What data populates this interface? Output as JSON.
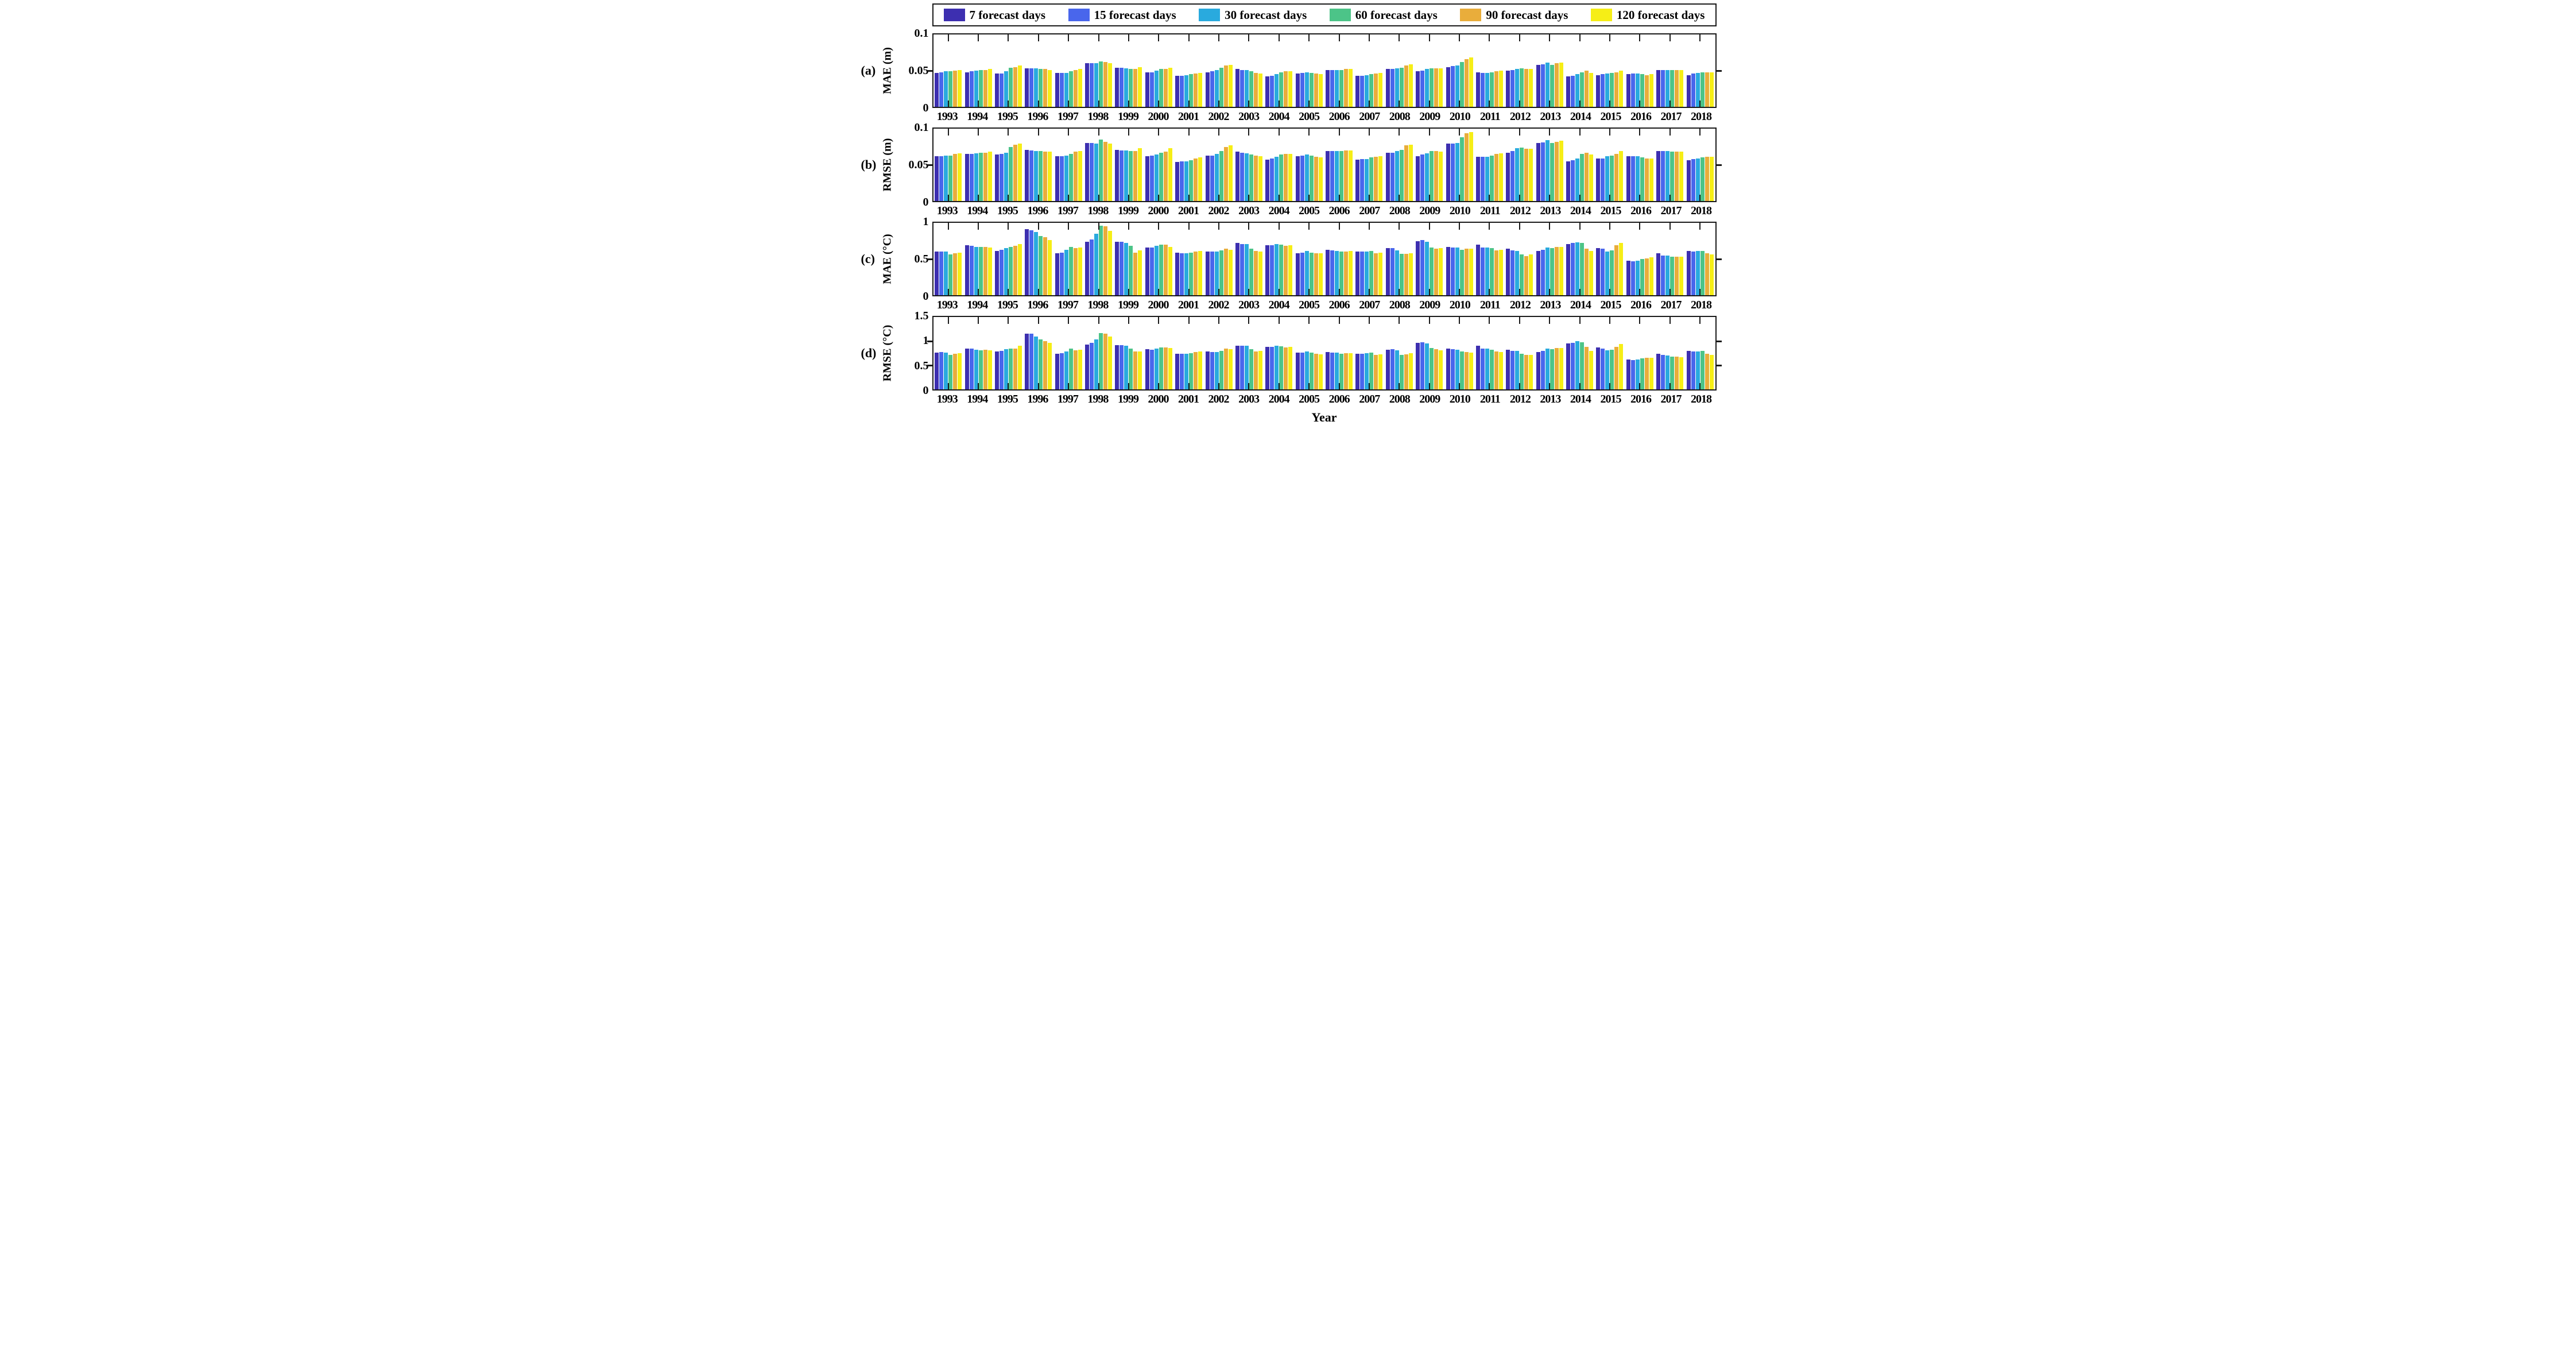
{
  "xlabel": "Year",
  "legend": {
    "items": [
      {
        "label": "7 forecast days",
        "color": "#3d2fb0"
      },
      {
        "label": "15 forecast days",
        "color": "#4966ec"
      },
      {
        "label": "30 forecast days",
        "color": "#29aade"
      },
      {
        "label": "60 forecast days",
        "color": "#4cc488"
      },
      {
        "label": "90 forecast days",
        "color": "#e9ad3b"
      },
      {
        "label": "120 forecast days",
        "color": "#f6ee16"
      }
    ]
  },
  "chart_data": [
    {
      "type": "bar",
      "panel_tag": "(a)",
      "ylabel": "MAE (m)",
      "xlabel": "Year",
      "ylim": [
        0,
        0.1
      ],
      "yticks": [
        {
          "v": 0,
          "label": "0"
        },
        {
          "v": 0.05,
          "label": "0.05"
        },
        {
          "v": 0.1,
          "label": "0.1"
        }
      ],
      "grid": false,
      "legend_position": "top",
      "categories": [
        1993,
        1994,
        1995,
        1996,
        1997,
        1998,
        1999,
        2000,
        2001,
        2002,
        2003,
        2004,
        2005,
        2006,
        2007,
        2008,
        2009,
        2010,
        2011,
        2012,
        2013,
        2014,
        2015,
        2016,
        2017,
        2018
      ],
      "series": [
        {
          "name": "7 forecast days",
          "values": [
            0.047,
            0.048,
            0.046,
            0.053,
            0.047,
            0.06,
            0.054,
            0.048,
            0.043,
            0.048,
            0.052,
            0.042,
            0.046,
            0.051,
            0.043,
            0.052,
            0.049,
            0.055,
            0.048,
            0.05,
            0.058,
            0.042,
            0.044,
            0.045,
            0.051,
            0.044
          ]
        },
        {
          "name": "15 forecast days",
          "values": [
            0.048,
            0.049,
            0.046,
            0.053,
            0.047,
            0.06,
            0.054,
            0.048,
            0.043,
            0.049,
            0.051,
            0.043,
            0.047,
            0.051,
            0.043,
            0.052,
            0.05,
            0.056,
            0.047,
            0.051,
            0.059,
            0.043,
            0.045,
            0.046,
            0.051,
            0.046
          ]
        },
        {
          "name": "30 forecast days",
          "values": [
            0.049,
            0.05,
            0.049,
            0.053,
            0.047,
            0.06,
            0.053,
            0.05,
            0.044,
            0.051,
            0.051,
            0.045,
            0.048,
            0.051,
            0.044,
            0.053,
            0.052,
            0.057,
            0.047,
            0.052,
            0.061,
            0.045,
            0.046,
            0.046,
            0.051,
            0.047
          ]
        },
        {
          "name": "60 forecast days",
          "values": [
            0.049,
            0.051,
            0.054,
            0.052,
            0.049,
            0.063,
            0.052,
            0.052,
            0.045,
            0.054,
            0.049,
            0.048,
            0.047,
            0.051,
            0.045,
            0.054,
            0.053,
            0.062,
            0.048,
            0.053,
            0.058,
            0.048,
            0.047,
            0.045,
            0.051,
            0.048
          ]
        },
        {
          "name": "90 forecast days",
          "values": [
            0.05,
            0.051,
            0.055,
            0.052,
            0.051,
            0.062,
            0.052,
            0.052,
            0.046,
            0.057,
            0.047,
            0.049,
            0.046,
            0.052,
            0.046,
            0.057,
            0.053,
            0.066,
            0.049,
            0.052,
            0.06,
            0.05,
            0.048,
            0.044,
            0.051,
            0.048
          ]
        },
        {
          "name": "120 forecast days",
          "values": [
            0.051,
            0.052,
            0.057,
            0.051,
            0.052,
            0.06,
            0.055,
            0.054,
            0.047,
            0.058,
            0.046,
            0.049,
            0.045,
            0.052,
            0.047,
            0.059,
            0.053,
            0.068,
            0.05,
            0.052,
            0.061,
            0.047,
            0.05,
            0.045,
            0.051,
            0.048
          ]
        }
      ]
    },
    {
      "type": "bar",
      "panel_tag": "(b)",
      "ylabel": "RMSE (m)",
      "xlabel": "Year",
      "ylim": [
        0,
        0.1
      ],
      "yticks": [
        {
          "v": 0,
          "label": "0"
        },
        {
          "v": 0.05,
          "label": "0.05"
        },
        {
          "v": 0.1,
          "label": "0.1"
        }
      ],
      "grid": false,
      "legend_position": "top",
      "categories": [
        1993,
        1994,
        1995,
        1996,
        1997,
        1998,
        1999,
        2000,
        2001,
        2002,
        2003,
        2004,
        2005,
        2006,
        2007,
        2008,
        2009,
        2010,
        2011,
        2012,
        2013,
        2014,
        2015,
        2016,
        2017,
        2018
      ],
      "series": [
        {
          "name": "7 forecast days",
          "values": [
            0.062,
            0.065,
            0.064,
            0.071,
            0.062,
            0.08,
            0.071,
            0.062,
            0.054,
            0.063,
            0.068,
            0.057,
            0.062,
            0.069,
            0.057,
            0.067,
            0.062,
            0.079,
            0.061,
            0.067,
            0.08,
            0.055,
            0.059,
            0.062,
            0.069,
            0.056
          ]
        },
        {
          "name": "15 forecast days",
          "values": [
            0.062,
            0.065,
            0.065,
            0.07,
            0.062,
            0.08,
            0.07,
            0.063,
            0.055,
            0.063,
            0.067,
            0.059,
            0.063,
            0.069,
            0.058,
            0.067,
            0.064,
            0.079,
            0.061,
            0.069,
            0.081,
            0.056,
            0.059,
            0.062,
            0.069,
            0.058
          ]
        },
        {
          "name": "30 forecast days",
          "values": [
            0.063,
            0.066,
            0.067,
            0.069,
            0.063,
            0.079,
            0.07,
            0.064,
            0.055,
            0.065,
            0.066,
            0.061,
            0.064,
            0.069,
            0.058,
            0.069,
            0.066,
            0.08,
            0.061,
            0.073,
            0.084,
            0.059,
            0.062,
            0.062,
            0.069,
            0.059
          ]
        },
        {
          "name": "60 forecast days",
          "values": [
            0.063,
            0.067,
            0.075,
            0.069,
            0.065,
            0.085,
            0.069,
            0.067,
            0.056,
            0.069,
            0.064,
            0.064,
            0.063,
            0.069,
            0.06,
            0.071,
            0.069,
            0.088,
            0.063,
            0.074,
            0.08,
            0.065,
            0.063,
            0.06,
            0.068,
            0.06
          ]
        },
        {
          "name": "90 forecast days",
          "values": [
            0.065,
            0.067,
            0.078,
            0.068,
            0.068,
            0.082,
            0.069,
            0.068,
            0.059,
            0.075,
            0.063,
            0.065,
            0.061,
            0.07,
            0.061,
            0.077,
            0.069,
            0.094,
            0.065,
            0.072,
            0.082,
            0.067,
            0.065,
            0.059,
            0.068,
            0.061
          ]
        },
        {
          "name": "120 forecast days",
          "values": [
            0.066,
            0.068,
            0.079,
            0.068,
            0.069,
            0.079,
            0.073,
            0.073,
            0.06,
            0.077,
            0.062,
            0.065,
            0.06,
            0.07,
            0.062,
            0.078,
            0.068,
            0.095,
            0.066,
            0.072,
            0.083,
            0.064,
            0.069,
            0.059,
            0.068,
            0.061
          ]
        }
      ]
    },
    {
      "type": "bar",
      "panel_tag": "(c)",
      "ylabel": "MAE (°C)",
      "xlabel": "Year",
      "ylim": [
        0,
        1
      ],
      "yticks": [
        {
          "v": 0,
          "label": "0"
        },
        {
          "v": 0.5,
          "label": "0.5"
        },
        {
          "v": 1,
          "label": "1"
        }
      ],
      "grid": false,
      "legend_position": "top",
      "categories": [
        1993,
        1994,
        1995,
        1996,
        1997,
        1998,
        1999,
        2000,
        2001,
        2002,
        2003,
        2004,
        2005,
        2006,
        2007,
        2008,
        2009,
        2010,
        2011,
        2012,
        2013,
        2014,
        2015,
        2016,
        2017,
        2018
      ],
      "series": [
        {
          "name": "7 forecast days",
          "values": [
            0.6,
            0.69,
            0.61,
            0.91,
            0.58,
            0.74,
            0.74,
            0.66,
            0.59,
            0.6,
            0.72,
            0.69,
            0.58,
            0.63,
            0.6,
            0.65,
            0.75,
            0.67,
            0.7,
            0.64,
            0.61,
            0.71,
            0.65,
            0.48,
            0.58,
            0.61
          ]
        },
        {
          "name": "15 forecast days",
          "values": [
            0.6,
            0.68,
            0.63,
            0.9,
            0.59,
            0.77,
            0.74,
            0.66,
            0.58,
            0.6,
            0.71,
            0.69,
            0.59,
            0.62,
            0.6,
            0.65,
            0.76,
            0.66,
            0.66,
            0.62,
            0.63,
            0.72,
            0.64,
            0.47,
            0.55,
            0.6
          ]
        },
        {
          "name": "30 forecast days",
          "values": [
            0.6,
            0.67,
            0.65,
            0.87,
            0.63,
            0.85,
            0.72,
            0.68,
            0.58,
            0.6,
            0.71,
            0.71,
            0.61,
            0.61,
            0.6,
            0.62,
            0.74,
            0.66,
            0.66,
            0.61,
            0.66,
            0.73,
            0.6,
            0.48,
            0.55,
            0.61
          ]
        },
        {
          "name": "60 forecast days",
          "values": [
            0.56,
            0.67,
            0.67,
            0.82,
            0.67,
            0.96,
            0.68,
            0.7,
            0.59,
            0.62,
            0.64,
            0.7,
            0.59,
            0.6,
            0.61,
            0.57,
            0.66,
            0.63,
            0.65,
            0.56,
            0.65,
            0.72,
            0.62,
            0.5,
            0.53,
            0.61
          ]
        },
        {
          "name": "90 forecast days",
          "values": [
            0.58,
            0.67,
            0.68,
            0.8,
            0.65,
            0.95,
            0.59,
            0.7,
            0.6,
            0.64,
            0.61,
            0.68,
            0.58,
            0.6,
            0.58,
            0.57,
            0.64,
            0.64,
            0.62,
            0.54,
            0.67,
            0.64,
            0.69,
            0.51,
            0.53,
            0.58
          ]
        },
        {
          "name": "120 forecast days",
          "values": [
            0.59,
            0.66,
            0.71,
            0.76,
            0.66,
            0.89,
            0.62,
            0.67,
            0.61,
            0.63,
            0.6,
            0.69,
            0.58,
            0.61,
            0.59,
            0.58,
            0.65,
            0.64,
            0.63,
            0.56,
            0.67,
            0.61,
            0.72,
            0.52,
            0.53,
            0.56
          ]
        }
      ]
    },
    {
      "type": "bar",
      "panel_tag": "(d)",
      "ylabel": "RMSE (°C)",
      "xlabel": "Year",
      "ylim": [
        0,
        1.5
      ],
      "yticks": [
        {
          "v": 0,
          "label": "0"
        },
        {
          "v": 0.5,
          "label": "0.5"
        },
        {
          "v": 1,
          "label": "1"
        },
        {
          "v": 1.5,
          "label": "1.5"
        }
      ],
      "grid": false,
      "legend_position": "top",
      "categories": [
        1993,
        1994,
        1995,
        1996,
        1997,
        1998,
        1999,
        2000,
        2001,
        2002,
        2003,
        2004,
        2005,
        2006,
        2007,
        2008,
        2009,
        2010,
        2011,
        2012,
        2013,
        2014,
        2015,
        2016,
        2017,
        2018
      ],
      "series": [
        {
          "name": "7 forecast days",
          "values": [
            0.76,
            0.85,
            0.79,
            1.15,
            0.74,
            0.93,
            0.92,
            0.83,
            0.74,
            0.78,
            0.91,
            0.88,
            0.76,
            0.77,
            0.74,
            0.82,
            0.97,
            0.84,
            0.9,
            0.82,
            0.77,
            0.95,
            0.87,
            0.62,
            0.74,
            0.8
          ]
        },
        {
          "name": "15 forecast days",
          "values": [
            0.77,
            0.84,
            0.8,
            1.15,
            0.75,
            0.97,
            0.92,
            0.82,
            0.74,
            0.77,
            0.91,
            0.88,
            0.76,
            0.76,
            0.74,
            0.83,
            0.98,
            0.83,
            0.84,
            0.8,
            0.8,
            0.97,
            0.85,
            0.61,
            0.71,
            0.79
          ]
        },
        {
          "name": "30 forecast days",
          "values": [
            0.76,
            0.82,
            0.83,
            1.09,
            0.79,
            1.04,
            0.9,
            0.85,
            0.74,
            0.77,
            0.9,
            0.9,
            0.78,
            0.76,
            0.75,
            0.81,
            0.95,
            0.82,
            0.84,
            0.8,
            0.84,
            1.0,
            0.81,
            0.62,
            0.7,
            0.79
          ]
        },
        {
          "name": "60 forecast days",
          "values": [
            0.72,
            0.81,
            0.85,
            1.04,
            0.84,
            1.17,
            0.85,
            0.87,
            0.75,
            0.8,
            0.83,
            0.89,
            0.76,
            0.74,
            0.76,
            0.72,
            0.86,
            0.79,
            0.82,
            0.74,
            0.83,
            0.98,
            0.82,
            0.64,
            0.68,
            0.8
          ]
        },
        {
          "name": "90 forecast days",
          "values": [
            0.74,
            0.82,
            0.85,
            1.0,
            0.81,
            1.16,
            0.79,
            0.87,
            0.77,
            0.85,
            0.79,
            0.87,
            0.74,
            0.75,
            0.71,
            0.73,
            0.83,
            0.77,
            0.79,
            0.71,
            0.86,
            0.88,
            0.88,
            0.65,
            0.68,
            0.74
          ]
        },
        {
          "name": "120 forecast days",
          "values": [
            0.75,
            0.81,
            0.9,
            0.96,
            0.82,
            1.09,
            0.78,
            0.86,
            0.78,
            0.83,
            0.8,
            0.88,
            0.73,
            0.75,
            0.73,
            0.75,
            0.81,
            0.76,
            0.77,
            0.71,
            0.86,
            0.8,
            0.94,
            0.66,
            0.67,
            0.71
          ]
        }
      ]
    }
  ]
}
